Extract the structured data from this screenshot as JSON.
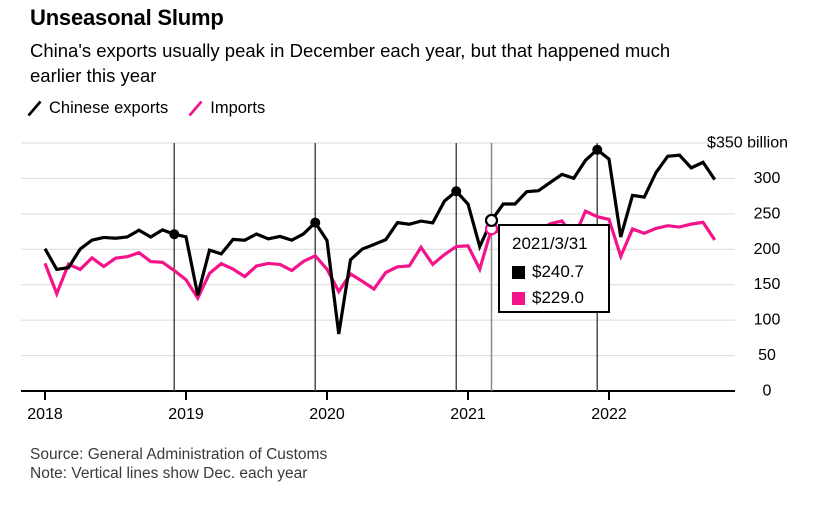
{
  "header": {
    "title": "Unseasonal Slump",
    "subtitle_line1": "China's exports usually peak in December each year, but that happened much",
    "subtitle_line2": "earlier this year"
  },
  "legend": [
    {
      "label": "Chinese exports",
      "color": "#000000"
    },
    {
      "label": "Imports",
      "color": "#f3138b"
    }
  ],
  "tooltip": {
    "date": "2021/3/31",
    "rows": [
      {
        "value": "$240.7",
        "color": "#000000"
      },
      {
        "value": "$229.0",
        "color": "#f3138b"
      }
    ]
  },
  "footer": {
    "source": "Source: General Administration of Customs",
    "note": "Note: Vertical lines show Dec. each year"
  },
  "chart_data": {
    "type": "line",
    "title": "Unseasonal Slump",
    "unit_label": "$350 billion",
    "x_start": "2018-01",
    "x_end": "2022-10",
    "x_tick_years": [
      "2018",
      "2019",
      "2020",
      "2021",
      "2022"
    ],
    "ylim": [
      0,
      350
    ],
    "y_ticks": [
      0,
      50,
      100,
      150,
      200,
      250,
      300,
      350
    ],
    "grid": true,
    "legend_position": "top-left",
    "december_marker_indices": [
      11,
      23,
      35,
      47
    ],
    "crosshair_index": 38,
    "crosshair_date": "2021/3/31",
    "series": [
      {
        "name": "Chinese exports",
        "color": "#000000",
        "values": [
          200.8,
          171.6,
          174.1,
          200.4,
          212.9,
          216.7,
          215.6,
          217.4,
          226.9,
          217.3,
          227.4,
          221.3,
          217.6,
          135.2,
          198.8,
          193.5,
          213.9,
          212.8,
          221.6,
          214.8,
          218.1,
          212.9,
          221.7,
          237.7,
          212.4,
          80.5,
          185.2,
          200.3,
          206.8,
          213.6,
          237.6,
          235.3,
          239.8,
          237.2,
          268.1,
          281.9,
          263.9,
          203.7,
          240.7,
          263.9,
          263.9,
          281.4,
          282.7,
          294.3,
          305.7,
          300.2,
          325.5,
          340.5,
          327.3,
          217.4,
          276.1,
          273.6,
          308.2,
          331.3,
          332.9,
          314.9,
          322.8,
          298.4
        ]
      },
      {
        "name": "Imports",
        "color": "#f3138b",
        "values": [
          180.2,
          137.3,
          179.0,
          171.6,
          187.9,
          175.6,
          187.5,
          189.5,
          195.2,
          182.7,
          181.6,
          170.0,
          157.0,
          131.1,
          166.0,
          179.7,
          172.2,
          161.5,
          176.5,
          180.0,
          178.6,
          170.0,
          183.0,
          190.8,
          172.0,
          140.5,
          165.2,
          154.9,
          143.9,
          167.2,
          175.3,
          176.4,
          202.8,
          178.7,
          192.6,
          203.8,
          205.0,
          172.0,
          229.0,
          221.1,
          218.4,
          229.9,
          226.1,
          236.0,
          240.0,
          215.7,
          253.8,
          246.0,
          242.2,
          190.0,
          228.7,
          222.5,
          229.5,
          233.3,
          231.4,
          235.5,
          238.1,
          213.2
        ]
      }
    ]
  }
}
